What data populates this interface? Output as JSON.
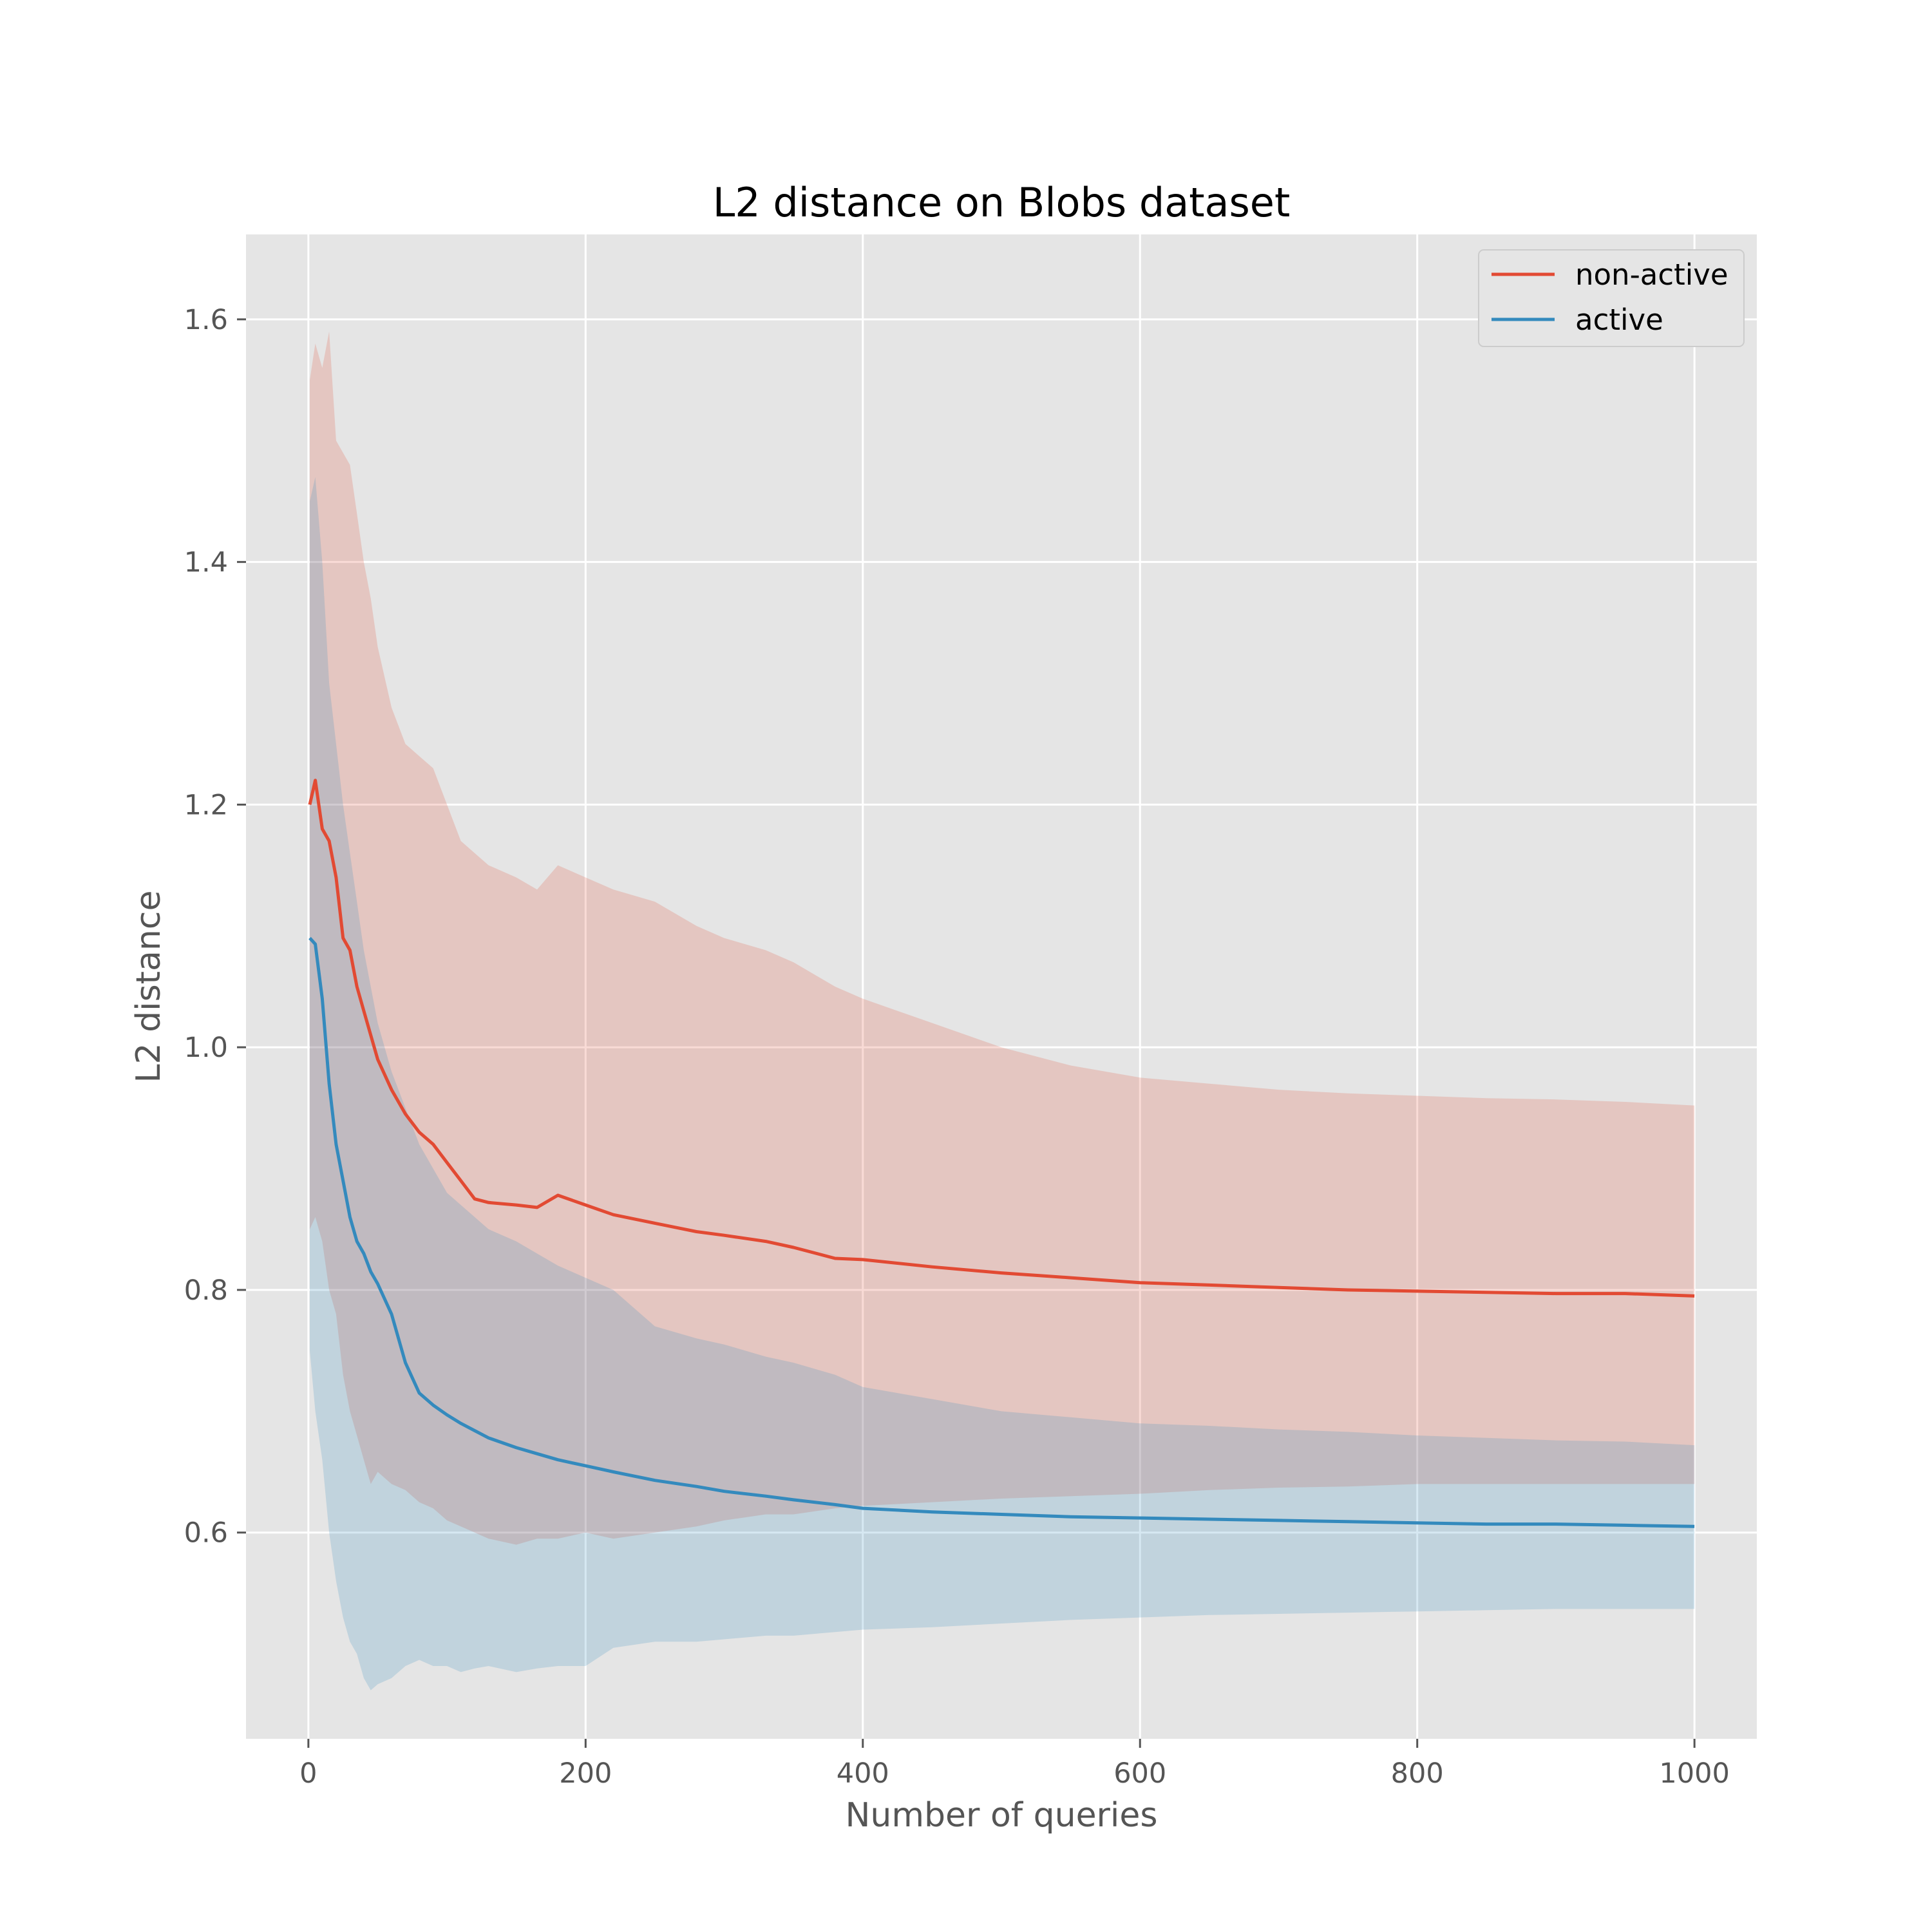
{
  "chart_data": {
    "type": "line",
    "title": "L2 distance on Blobs dataset",
    "xlabel": "Number of queries",
    "ylabel": "L2 distance",
    "xlim": [
      -45,
      1045
    ],
    "ylim": [
      0.43,
      1.67
    ],
    "xticks": [
      0,
      200,
      400,
      600,
      800,
      1000
    ],
    "yticks": [
      0.6,
      0.8,
      1.0,
      1.2,
      1.4,
      1.6
    ],
    "xtick_labels": [
      "0",
      "200",
      "400",
      "600",
      "800",
      "1000"
    ],
    "ytick_labels": [
      "0.6",
      "0.8",
      "1.0",
      "1.2",
      "1.4",
      "1.6"
    ],
    "grid": true,
    "legend_position": "top-right",
    "colors": {
      "background": "#E5E5E5",
      "grid": "#FFFFFF"
    },
    "series": [
      {
        "name": "non-active",
        "color": "#E24A33",
        "points": [
          [
            1,
            1.2
          ],
          [
            5,
            1.22
          ],
          [
            10,
            1.18
          ],
          [
            15,
            1.17
          ],
          [
            20,
            1.14
          ],
          [
            25,
            1.09
          ],
          [
            30,
            1.08
          ],
          [
            35,
            1.05
          ],
          [
            40,
            1.03
          ],
          [
            45,
            1.01
          ],
          [
            50,
            0.99
          ],
          [
            60,
            0.965
          ],
          [
            70,
            0.945
          ],
          [
            80,
            0.93
          ],
          [
            90,
            0.92
          ],
          [
            100,
            0.905
          ],
          [
            110,
            0.89
          ],
          [
            120,
            0.875
          ],
          [
            130,
            0.872
          ],
          [
            150,
            0.87
          ],
          [
            165,
            0.868
          ],
          [
            180,
            0.878
          ],
          [
            200,
            0.87
          ],
          [
            220,
            0.862
          ],
          [
            250,
            0.855
          ],
          [
            280,
            0.848
          ],
          [
            300,
            0.845
          ],
          [
            330,
            0.84
          ],
          [
            350,
            0.835
          ],
          [
            380,
            0.826
          ],
          [
            400,
            0.825
          ],
          [
            450,
            0.819
          ],
          [
            500,
            0.814
          ],
          [
            550,
            0.81
          ],
          [
            600,
            0.806
          ],
          [
            650,
            0.804
          ],
          [
            700,
            0.802
          ],
          [
            750,
            0.8
          ],
          [
            800,
            0.799
          ],
          [
            850,
            0.798
          ],
          [
            900,
            0.797
          ],
          [
            950,
            0.797
          ],
          [
            1000,
            0.795
          ]
        ],
        "band_upper": [
          [
            1,
            1.55
          ],
          [
            5,
            1.58
          ],
          [
            10,
            1.56
          ],
          [
            15,
            1.59
          ],
          [
            20,
            1.5
          ],
          [
            25,
            1.49
          ],
          [
            30,
            1.48
          ],
          [
            35,
            1.44
          ],
          [
            40,
            1.4
          ],
          [
            45,
            1.37
          ],
          [
            50,
            1.33
          ],
          [
            60,
            1.28
          ],
          [
            70,
            1.25
          ],
          [
            80,
            1.24
          ],
          [
            90,
            1.23
          ],
          [
            100,
            1.2
          ],
          [
            110,
            1.17
          ],
          [
            120,
            1.16
          ],
          [
            130,
            1.15
          ],
          [
            150,
            1.14
          ],
          [
            165,
            1.13
          ],
          [
            180,
            1.15
          ],
          [
            200,
            1.14
          ],
          [
            220,
            1.13
          ],
          [
            250,
            1.12
          ],
          [
            280,
            1.1
          ],
          [
            300,
            1.09
          ],
          [
            330,
            1.08
          ],
          [
            350,
            1.07
          ],
          [
            380,
            1.05
          ],
          [
            400,
            1.04
          ],
          [
            450,
            1.02
          ],
          [
            500,
            1.0
          ],
          [
            550,
            0.985
          ],
          [
            600,
            0.975
          ],
          [
            650,
            0.97
          ],
          [
            700,
            0.965
          ],
          [
            750,
            0.962
          ],
          [
            800,
            0.96
          ],
          [
            850,
            0.958
          ],
          [
            900,
            0.957
          ],
          [
            950,
            0.955
          ],
          [
            1000,
            0.952
          ]
        ],
        "band_lower": [
          [
            1,
            0.85
          ],
          [
            5,
            0.86
          ],
          [
            10,
            0.84
          ],
          [
            15,
            0.8
          ],
          [
            20,
            0.78
          ],
          [
            25,
            0.73
          ],
          [
            30,
            0.7
          ],
          [
            35,
            0.68
          ],
          [
            40,
            0.66
          ],
          [
            45,
            0.64
          ],
          [
            50,
            0.65
          ],
          [
            60,
            0.64
          ],
          [
            70,
            0.635
          ],
          [
            80,
            0.625
          ],
          [
            90,
            0.62
          ],
          [
            100,
            0.61
          ],
          [
            110,
            0.605
          ],
          [
            120,
            0.6
          ],
          [
            130,
            0.595
          ],
          [
            150,
            0.59
          ],
          [
            165,
            0.595
          ],
          [
            180,
            0.595
          ],
          [
            200,
            0.6
          ],
          [
            220,
            0.595
          ],
          [
            250,
            0.6
          ],
          [
            280,
            0.605
          ],
          [
            300,
            0.61
          ],
          [
            330,
            0.615
          ],
          [
            350,
            0.615
          ],
          [
            380,
            0.62
          ],
          [
            400,
            0.622
          ],
          [
            450,
            0.625
          ],
          [
            500,
            0.628
          ],
          [
            550,
            0.63
          ],
          [
            600,
            0.632
          ],
          [
            650,
            0.635
          ],
          [
            700,
            0.637
          ],
          [
            750,
            0.638
          ],
          [
            800,
            0.64
          ],
          [
            850,
            0.64
          ],
          [
            900,
            0.64
          ],
          [
            950,
            0.64
          ],
          [
            1000,
            0.64
          ]
        ]
      },
      {
        "name": "active",
        "color": "#348ABD",
        "points": [
          [
            1,
            1.09
          ],
          [
            5,
            1.085
          ],
          [
            10,
            1.04
          ],
          [
            15,
            0.97
          ],
          [
            20,
            0.92
          ],
          [
            25,
            0.89
          ],
          [
            30,
            0.86
          ],
          [
            35,
            0.84
          ],
          [
            40,
            0.83
          ],
          [
            45,
            0.815
          ],
          [
            50,
            0.805
          ],
          [
            60,
            0.78
          ],
          [
            70,
            0.74
          ],
          [
            80,
            0.715
          ],
          [
            90,
            0.705
          ],
          [
            100,
            0.697
          ],
          [
            110,
            0.69
          ],
          [
            120,
            0.684
          ],
          [
            130,
            0.678
          ],
          [
            150,
            0.67
          ],
          [
            165,
            0.665
          ],
          [
            180,
            0.66
          ],
          [
            200,
            0.655
          ],
          [
            220,
            0.65
          ],
          [
            250,
            0.643
          ],
          [
            280,
            0.638
          ],
          [
            300,
            0.634
          ],
          [
            330,
            0.63
          ],
          [
            350,
            0.627
          ],
          [
            380,
            0.623
          ],
          [
            400,
            0.62
          ],
          [
            450,
            0.617
          ],
          [
            500,
            0.615
          ],
          [
            550,
            0.613
          ],
          [
            600,
            0.612
          ],
          [
            650,
            0.611
          ],
          [
            700,
            0.61
          ],
          [
            750,
            0.609
          ],
          [
            800,
            0.608
          ],
          [
            850,
            0.607
          ],
          [
            900,
            0.607
          ],
          [
            950,
            0.606
          ],
          [
            1000,
            0.605
          ]
        ],
        "band_upper": [
          [
            1,
            1.45
          ],
          [
            5,
            1.47
          ],
          [
            10,
            1.4
          ],
          [
            15,
            1.3
          ],
          [
            20,
            1.25
          ],
          [
            25,
            1.2
          ],
          [
            30,
            1.16
          ],
          [
            35,
            1.12
          ],
          [
            40,
            1.08
          ],
          [
            45,
            1.05
          ],
          [
            50,
            1.02
          ],
          [
            60,
            0.98
          ],
          [
            70,
            0.95
          ],
          [
            80,
            0.92
          ],
          [
            90,
            0.9
          ],
          [
            100,
            0.88
          ],
          [
            110,
            0.87
          ],
          [
            120,
            0.86
          ],
          [
            130,
            0.85
          ],
          [
            150,
            0.84
          ],
          [
            165,
            0.83
          ],
          [
            180,
            0.82
          ],
          [
            200,
            0.81
          ],
          [
            220,
            0.8
          ],
          [
            250,
            0.77
          ],
          [
            280,
            0.76
          ],
          [
            300,
            0.755
          ],
          [
            330,
            0.745
          ],
          [
            350,
            0.74
          ],
          [
            380,
            0.73
          ],
          [
            400,
            0.72
          ],
          [
            450,
            0.71
          ],
          [
            500,
            0.7
          ],
          [
            550,
            0.695
          ],
          [
            600,
            0.69
          ],
          [
            650,
            0.688
          ],
          [
            700,
            0.685
          ],
          [
            750,
            0.683
          ],
          [
            800,
            0.68
          ],
          [
            850,
            0.678
          ],
          [
            900,
            0.676
          ],
          [
            950,
            0.675
          ],
          [
            1000,
            0.672
          ]
        ],
        "band_lower": [
          [
            1,
            0.75
          ],
          [
            5,
            0.7
          ],
          [
            10,
            0.66
          ],
          [
            15,
            0.6
          ],
          [
            20,
            0.56
          ],
          [
            25,
            0.53
          ],
          [
            30,
            0.51
          ],
          [
            35,
            0.5
          ],
          [
            40,
            0.48
          ],
          [
            45,
            0.47
          ],
          [
            50,
            0.475
          ],
          [
            60,
            0.48
          ],
          [
            70,
            0.49
          ],
          [
            80,
            0.495
          ],
          [
            90,
            0.49
          ],
          [
            100,
            0.49
          ],
          [
            110,
            0.485
          ],
          [
            120,
            0.488
          ],
          [
            130,
            0.49
          ],
          [
            150,
            0.485
          ],
          [
            165,
            0.488
          ],
          [
            180,
            0.49
          ],
          [
            200,
            0.49
          ],
          [
            220,
            0.505
          ],
          [
            250,
            0.51
          ],
          [
            280,
            0.51
          ],
          [
            300,
            0.512
          ],
          [
            330,
            0.515
          ],
          [
            350,
            0.515
          ],
          [
            380,
            0.518
          ],
          [
            400,
            0.52
          ],
          [
            450,
            0.522
          ],
          [
            500,
            0.525
          ],
          [
            550,
            0.528
          ],
          [
            600,
            0.53
          ],
          [
            650,
            0.532
          ],
          [
            700,
            0.533
          ],
          [
            750,
            0.534
          ],
          [
            800,
            0.535
          ],
          [
            850,
            0.536
          ],
          [
            900,
            0.537
          ],
          [
            950,
            0.537
          ],
          [
            1000,
            0.537
          ]
        ]
      }
    ]
  }
}
